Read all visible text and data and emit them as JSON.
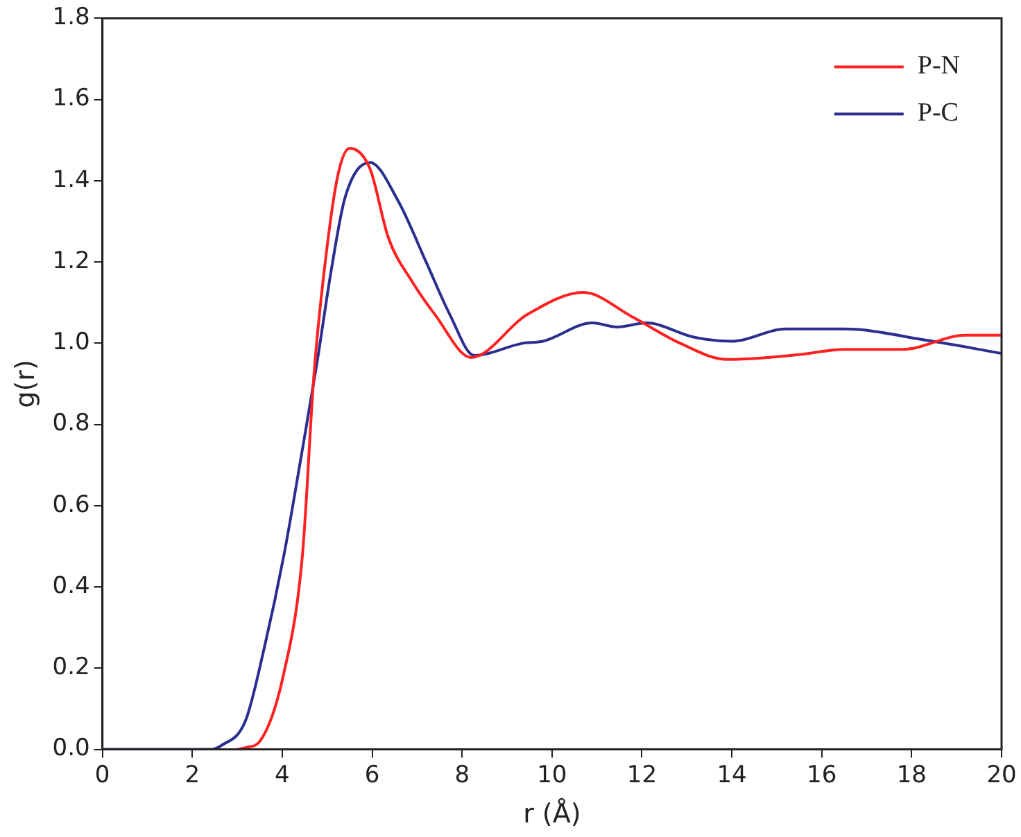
{
  "chart_data": {
    "type": "line",
    "xlabel": "r (Å)",
    "ylabel": "g(r)",
    "legend": "top right",
    "grid": false,
    "marker": "none",
    "line_style": "solid",
    "xlim": [
      0,
      20
    ],
    "xticks": [
      0,
      2,
      4,
      6,
      8,
      10,
      12,
      14,
      16,
      18,
      20
    ],
    "ylim": [
      0,
      1.8
    ],
    "yticks": [
      {
        "value": 0,
        "label": "0.0"
      },
      {
        "value": 0.2,
        "label": "0.2"
      },
      {
        "value": 0.4,
        "label": "0.4"
      },
      {
        "value": 0.6,
        "label": "0.6"
      },
      {
        "value": 0.8,
        "label": "0.8"
      },
      {
        "value": 1,
        "label": "1.0"
      },
      {
        "value": 1.2,
        "label": "1.2"
      },
      {
        "value": 1.4,
        "label": "1.4"
      },
      {
        "value": 1.6,
        "label": "1.6"
      },
      {
        "value": 1.8,
        "label": "1.8"
      }
    ],
    "series": [
      {
        "name": "P-N",
        "color": "#ff2020",
        "x": [
          3.0,
          3.2,
          3.5,
          4.04,
          4.45,
          4.71,
          5.0,
          5.25,
          5.5,
          5.95,
          6.36,
          6.9,
          7.4,
          8.2,
          9.44,
          10.7,
          11.77,
          12.85,
          13.9,
          15.5,
          16.5,
          17.8,
          19.2,
          20
        ],
        "values": [
          0,
          0.005,
          0.02,
          0.19,
          0.48,
          0.93,
          1.24,
          1.42,
          1.48,
          1.43,
          1.26,
          1.15,
          1.07,
          0.965,
          1.07,
          1.125,
          1.066,
          1.0,
          0.96,
          0.972,
          0.985,
          0.985,
          1.02,
          1.02
        ]
      },
      {
        "name": "P-C",
        "color": "#2a2f8f",
        "x": [
          0,
          2.4,
          2.65,
          3.18,
          3.6,
          4.04,
          4.45,
          4.77,
          5.09,
          5.4,
          5.95,
          6.58,
          7.2,
          7.73,
          8.27,
          9.35,
          9.8,
          10.9,
          11.45,
          12.1,
          13.15,
          14.0,
          15.2,
          16.5,
          18.35,
          20
        ],
        "values": [
          0,
          0,
          0.01,
          0.07,
          0.25,
          0.48,
          0.74,
          0.95,
          1.18,
          1.36,
          1.445,
          1.35,
          1.2,
          1.07,
          0.97,
          1.0,
          1.005,
          1.05,
          1.04,
          1.05,
          1.015,
          1.005,
          1.035,
          1.035,
          1.007,
          0.975
        ]
      }
    ]
  }
}
